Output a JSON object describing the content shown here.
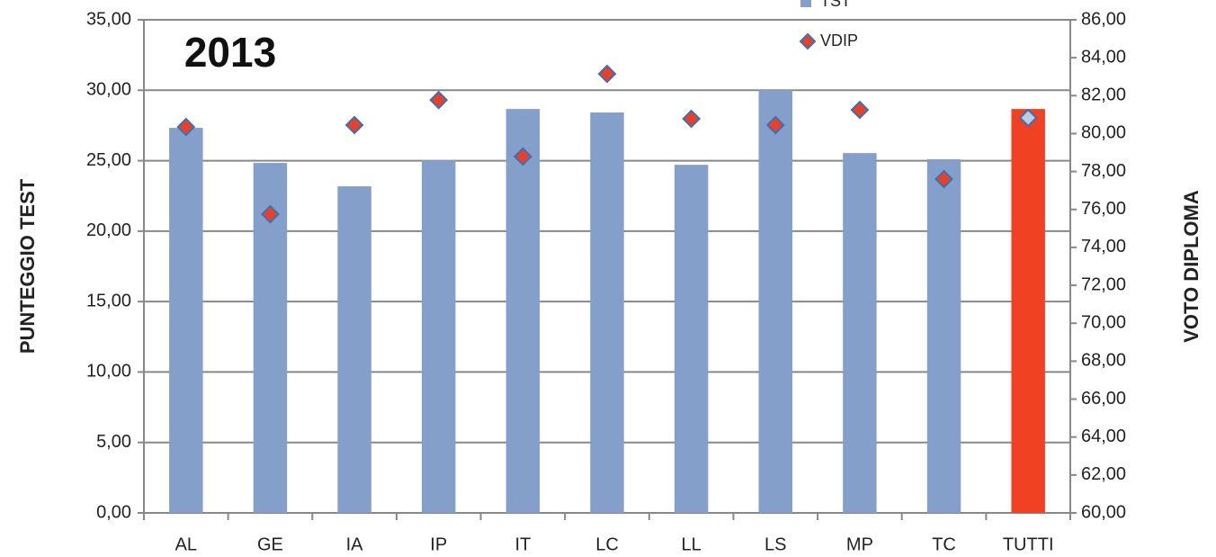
{
  "chart_data": {
    "type": "bar-scatter",
    "title": "2013",
    "y_label": "PUNTEGGIO TEST",
    "y2_label": "VOTO DIPLOMA",
    "categories": [
      "AL",
      "GE",
      "IA",
      "IP",
      "IT",
      "LC",
      "LL",
      "LS",
      "MP",
      "TC",
      "TUTTI"
    ],
    "series": [
      {
        "name": "TST",
        "type": "bar",
        "color": "#849fc9",
        "colors": [
          "#849fc9",
          "#849fc9",
          "#849fc9",
          "#849fc9",
          "#849fc9",
          "#849fc9",
          "#849fc9",
          "#849fc9",
          "#849fc9",
          "#849fc9",
          "#f04125"
        ],
        "values": [
          27.33,
          24.84,
          23.18,
          25.03,
          28.67,
          28.42,
          24.71,
          30.01,
          25.54,
          25.1,
          28.67
        ]
      },
      {
        "name": "VDIP",
        "type": "scatter",
        "axis": "y2",
        "color": "#e8412a",
        "edge_color": "#3f6fb0",
        "colors": [
          "#e8412a",
          "#e8412a",
          "#e8412a",
          "#e8412a",
          "#e8412a",
          "#e8412a",
          "#e8412a",
          "#e8412a",
          "#e8412a",
          "#e8412a",
          "#b9cde5"
        ],
        "values": [
          80.35,
          75.75,
          80.45,
          81.77,
          78.79,
          83.15,
          80.78,
          80.45,
          81.25,
          77.6,
          80.83
        ]
      }
    ],
    "ylim": [
      0,
      35
    ],
    "yticks": [
      {
        "value": 0,
        "label": "0,00"
      },
      {
        "value": 5,
        "label": "5,00"
      },
      {
        "value": 10,
        "label": "10,00"
      },
      {
        "value": 15,
        "label": "15,00"
      },
      {
        "value": 20,
        "label": "20,00"
      },
      {
        "value": 25,
        "label": "25,00"
      },
      {
        "value": 30,
        "label": "30,00"
      },
      {
        "value": 35,
        "label": "35,00"
      }
    ],
    "y2lim": [
      60,
      86
    ],
    "y2ticks": [
      {
        "value": 60,
        "label": "60,00"
      },
      {
        "value": 62,
        "label": "62,00"
      },
      {
        "value": 64,
        "label": "64,00"
      },
      {
        "value": 66,
        "label": "66,00"
      },
      {
        "value": 68,
        "label": "68,00"
      },
      {
        "value": 70,
        "label": "70,00"
      },
      {
        "value": 72,
        "label": "72,00"
      },
      {
        "value": 74,
        "label": "74,00"
      },
      {
        "value": 76,
        "label": "76,00"
      },
      {
        "value": 78,
        "label": "78,00"
      },
      {
        "value": 80,
        "label": "80,00"
      },
      {
        "value": 82,
        "label": "82,00"
      },
      {
        "value": 84,
        "label": "84,00"
      },
      {
        "value": 86,
        "label": "86,00"
      }
    ],
    "grid": true,
    "legend": "top-right"
  }
}
